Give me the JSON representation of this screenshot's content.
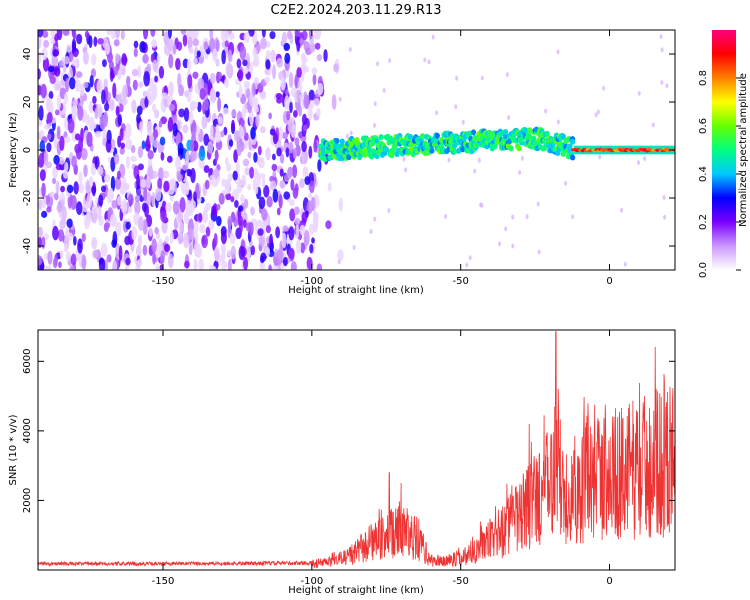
{
  "title": "C2E2.2024.203.11.29.R13",
  "chart_data": [
    {
      "type": "heatmap",
      "xlabel": "Height of straight line (km)",
      "ylabel": "Frequency (Hz)",
      "xlim": [
        -192,
        22
      ],
      "ylim": [
        -50,
        50
      ],
      "xticks": [
        -150,
        -100,
        -50,
        0
      ],
      "yticks": [
        -40,
        -20,
        0,
        20,
        40
      ],
      "colorbar": {
        "label": "Normalized spectral amplitude",
        "range": [
          0,
          1
        ],
        "ticks": [
          0.0,
          0.2,
          0.4,
          0.6,
          0.8
        ],
        "colors": [
          "#ffffff",
          "#cc99ff",
          "#7a00ff",
          "#0000ff",
          "#00c8ff",
          "#00ff80",
          "#66ff00",
          "#ffff00",
          "#ff8000",
          "#ff0000",
          "#ff0080"
        ]
      },
      "features": {
        "noise_region_x": [
          -192,
          -97
        ],
        "signal_band_start_x": -97,
        "signal_center_freq_hz": 0,
        "signal_drift_to_hz_at_x": [
          -25,
          10
        ],
        "strong_tone_x": [
          -12,
          22
        ],
        "strong_tone_amplitude": 0.9
      }
    },
    {
      "type": "line",
      "xlabel": "Height of straight line (km)",
      "ylabel": "SNR (10 * v/v)",
      "xlim": [
        -192,
        22
      ],
      "ylim": [
        0,
        6900
      ],
      "xticks": [
        -150,
        -100,
        -50,
        0
      ],
      "yticks": [
        2000,
        4000,
        6000
      ],
      "color": "#ee3333",
      "envelope": {
        "x": [
          -192,
          -150,
          -120,
          -100,
          -92,
          -85,
          -80,
          -75,
          -70,
          -65,
          -60,
          -55,
          -50,
          -45,
          -40,
          -35,
          -30,
          -25,
          -20,
          -18,
          -15,
          -10,
          -5,
          0,
          5,
          10,
          15,
          22
        ],
        "y": [
          180,
          180,
          190,
          200,
          300,
          600,
          900,
          1100,
          1300,
          1100,
          300,
          300,
          400,
          700,
          1000,
          1400,
          1800,
          2400,
          2800,
          3600,
          2500,
          2900,
          3000,
          3200,
          3300,
          3500,
          3600,
          3800
        ]
      },
      "peaks": [
        {
          "x": -18,
          "y": 6850
        },
        {
          "x": -5,
          "y": 4750
        },
        {
          "x": -22,
          "y": 4450
        },
        {
          "x": -27,
          "y": 4200
        },
        {
          "x": -74,
          "y": 2800
        },
        {
          "x": -70,
          "y": 2500
        },
        {
          "x": 22,
          "y": 4300
        }
      ]
    }
  ]
}
